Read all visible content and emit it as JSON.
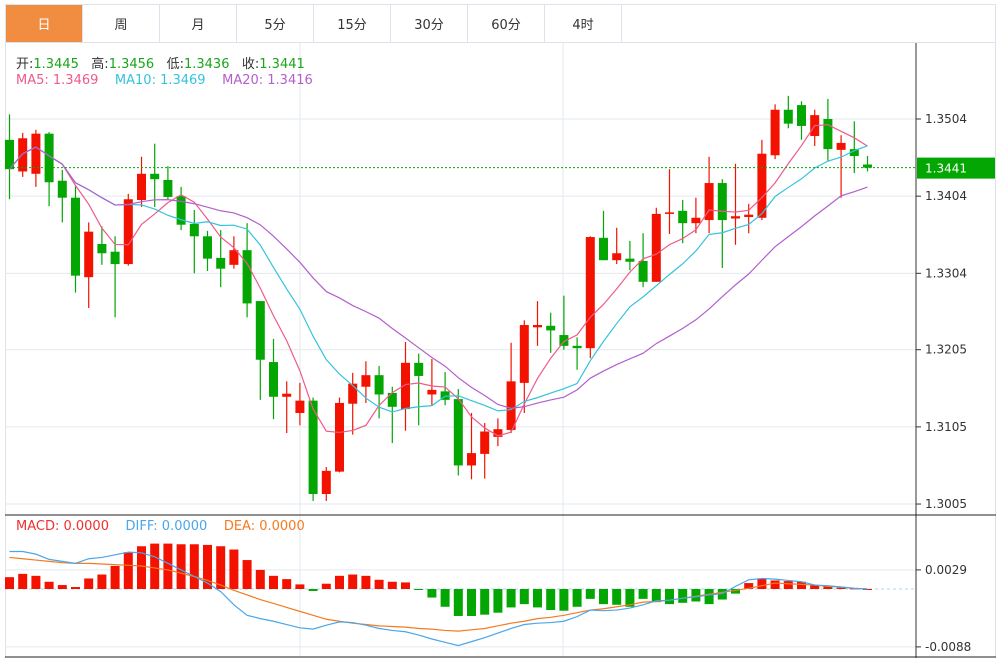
{
  "tabs": [
    {
      "label": "日",
      "active": true
    },
    {
      "label": "周"
    },
    {
      "label": "月"
    },
    {
      "label": "5分"
    },
    {
      "label": "15分"
    },
    {
      "label": "30分"
    },
    {
      "label": "60分"
    },
    {
      "label": "4时"
    }
  ],
  "ohlc_legend": {
    "open_label": "开:",
    "open": "1.3445",
    "high_label": "高:",
    "high": "1.3456",
    "low_label": "低:",
    "low": "1.3436",
    "close_label": "收:",
    "close": "1.3441"
  },
  "ma_legend": {
    "ma5": "MA5: 1.3469",
    "ma10": "MA10: 1.3469",
    "ma20": "MA20: 1.3416"
  },
  "macd_legend": {
    "macd": "MACD: 0.0000",
    "diff": "DIFF: 0.0000",
    "dea": "DEA: 0.0000"
  },
  "colors": {
    "up": "#f31200",
    "down": "#03a603",
    "ma5": "#ef5a8a",
    "ma10": "#35c3dc",
    "ma20": "#b35fcc",
    "diff": "#4aa6ea",
    "dea": "#f47b20",
    "last_price": "#03a603",
    "active_tab": "#f18d40"
  },
  "chart_data": [
    {
      "type": "candlestick",
      "price_ticks": [
        "1.3504",
        "1.3404",
        "1.3304",
        "1.3205",
        "1.3105",
        "1.3005"
      ],
      "ylim": [
        1.2985,
        1.354
      ],
      "last_price": "1.3441",
      "grid": true,
      "ohlc": [
        [
          1.3477,
          1.351,
          1.34,
          1.3439
        ],
        [
          1.3436,
          1.3486,
          1.3429,
          1.3479
        ],
        [
          1.3433,
          1.349,
          1.3416,
          1.3485
        ],
        [
          1.3485,
          1.3487,
          1.3391,
          1.3422
        ],
        [
          1.3424,
          1.3438,
          1.337,
          1.3402
        ],
        [
          1.3402,
          1.3417,
          1.3279,
          1.3301
        ],
        [
          1.3299,
          1.337,
          1.3259,
          1.3358
        ],
        [
          1.3342,
          1.3365,
          1.3315,
          1.333
        ],
        [
          1.3332,
          1.3352,
          1.3247,
          1.3316
        ],
        [
          1.3316,
          1.3407,
          1.3314,
          1.34
        ],
        [
          1.3399,
          1.3455,
          1.339,
          1.3433
        ],
        [
          1.3433,
          1.3472,
          1.339,
          1.3426
        ],
        [
          1.3425,
          1.3443,
          1.3399,
          1.3403
        ],
        [
          1.3404,
          1.3416,
          1.336,
          1.3367
        ],
        [
          1.3368,
          1.3386,
          1.3304,
          1.3352
        ],
        [
          1.3352,
          1.3359,
          1.3307,
          1.3323
        ],
        [
          1.3324,
          1.336,
          1.3286,
          1.331
        ],
        [
          1.3315,
          1.3352,
          1.331,
          1.3334
        ],
        [
          1.3334,
          1.3369,
          1.3247,
          1.3265
        ],
        [
          1.3268,
          1.3268,
          1.314,
          1.3192
        ],
        [
          1.3189,
          1.3219,
          1.3115,
          1.3144
        ],
        [
          1.3144,
          1.3164,
          1.3097,
          1.3148
        ],
        [
          1.3123,
          1.3162,
          1.3107,
          1.3139
        ],
        [
          1.3139,
          1.3143,
          1.3009,
          1.3018
        ],
        [
          1.3018,
          1.3053,
          1.3009,
          1.3048
        ],
        [
          1.3047,
          1.3143,
          1.3046,
          1.3136
        ],
        [
          1.3135,
          1.3175,
          1.3095,
          1.3161
        ],
        [
          1.3157,
          1.319,
          1.3136,
          1.3172
        ],
        [
          1.3172,
          1.3184,
          1.3116,
          1.3147
        ],
        [
          1.3149,
          1.3157,
          1.3084,
          1.3131
        ],
        [
          1.3128,
          1.3215,
          1.31,
          1.3188
        ],
        [
          1.3188,
          1.32,
          1.3107,
          1.3171
        ],
        [
          1.3147,
          1.3193,
          1.3133,
          1.3153
        ],
        [
          1.3151,
          1.3176,
          1.3133,
          1.314
        ],
        [
          1.3141,
          1.3154,
          1.3042,
          1.3055
        ],
        [
          1.3055,
          1.3123,
          1.3037,
          1.3071
        ],
        [
          1.307,
          1.311,
          1.3038,
          1.3099
        ],
        [
          1.3092,
          1.3116,
          1.308,
          1.3102
        ],
        [
          1.3101,
          1.3214,
          1.3097,
          1.3164
        ],
        [
          1.3162,
          1.3243,
          1.3123,
          1.3237
        ],
        [
          1.3234,
          1.3268,
          1.321,
          1.3237
        ],
        [
          1.3236,
          1.3253,
          1.3201,
          1.323
        ],
        [
          1.3224,
          1.3275,
          1.3205,
          1.321
        ],
        [
          1.321,
          1.3221,
          1.3179,
          1.3207
        ],
        [
          1.3207,
          1.3352,
          1.3194,
          1.3351
        ],
        [
          1.335,
          1.3385,
          1.3321,
          1.3321
        ],
        [
          1.3321,
          1.3363,
          1.3316,
          1.333
        ],
        [
          1.3323,
          1.3346,
          1.3308,
          1.3319
        ],
        [
          1.332,
          1.3356,
          1.3286,
          1.3293
        ],
        [
          1.3293,
          1.3389,
          1.3293,
          1.3381
        ],
        [
          1.3381,
          1.3439,
          1.3355,
          1.3383
        ],
        [
          1.3385,
          1.3399,
          1.3343,
          1.3369
        ],
        [
          1.3369,
          1.3402,
          1.3356,
          1.3376
        ],
        [
          1.3373,
          1.3455,
          1.3356,
          1.3421
        ],
        [
          1.3421,
          1.3426,
          1.3311,
          1.3373
        ],
        [
          1.3375,
          1.3446,
          1.3341,
          1.3378
        ],
        [
          1.3377,
          1.3394,
          1.3356,
          1.338
        ],
        [
          1.3376,
          1.3477,
          1.3373,
          1.3459
        ],
        [
          1.3457,
          1.3523,
          1.3452,
          1.3516
        ],
        [
          1.3516,
          1.3534,
          1.3492,
          1.3498
        ],
        [
          1.3522,
          1.3527,
          1.3477,
          1.3495
        ],
        [
          1.3482,
          1.3516,
          1.3469,
          1.3509
        ],
        [
          1.3504,
          1.353,
          1.345,
          1.3465
        ],
        [
          1.3464,
          1.3483,
          1.3402,
          1.3473
        ],
        [
          1.3465,
          1.3501,
          1.3434,
          1.3456
        ],
        [
          1.3445,
          1.3456,
          1.3436,
          1.3441
        ]
      ],
      "series": [
        {
          "name": "MA5",
          "period": 5
        },
        {
          "name": "MA10",
          "period": 10
        },
        {
          "name": "MA20",
          "period": 20
        }
      ]
    },
    {
      "type": "bar+line",
      "ticks": [
        "0.0029",
        "-0.0088"
      ],
      "ylim": [
        -0.0105,
        0.0105
      ],
      "macd": [
        0.0018,
        0.0023,
        0.002,
        0.0011,
        0.0006,
        0.0003,
        0.0016,
        0.0022,
        0.0035,
        0.0056,
        0.0065,
        0.0069,
        0.0069,
        0.0068,
        0.0068,
        0.0067,
        0.0065,
        0.006,
        0.0044,
        0.0029,
        0.002,
        0.0015,
        0.0007,
        -0.0003,
        0.0008,
        0.002,
        0.0022,
        0.002,
        0.0014,
        0.0011,
        0.001,
        -0.0001,
        -0.0013,
        -0.0027,
        -0.0041,
        -0.0041,
        -0.0039,
        -0.0036,
        -0.0028,
        -0.0023,
        -0.0028,
        -0.0032,
        -0.0033,
        -0.0027,
        -0.0015,
        -0.0023,
        -0.0024,
        -0.0027,
        -0.0015,
        -0.002,
        -0.0023,
        -0.0021,
        -0.0019,
        -0.0023,
        -0.0016,
        -0.0007,
        0.0009,
        0.0016,
        0.0013,
        0.0012,
        0.0011,
        0.0006,
        0.0005,
        0.0002,
        0.0001,
        0.0
      ],
      "diff": [
        0.0057,
        0.0057,
        0.0053,
        0.0045,
        0.0042,
        0.0039,
        0.0046,
        0.0048,
        0.0052,
        0.0056,
        0.0055,
        0.0049,
        0.0039,
        0.0029,
        0.0019,
        0.0009,
        -0.0004,
        -0.0024,
        -0.004,
        -0.0045,
        -0.0049,
        -0.0054,
        -0.0059,
        -0.0061,
        -0.0055,
        -0.005,
        -0.0051,
        -0.0055,
        -0.006,
        -0.0063,
        -0.0065,
        -0.007,
        -0.0076,
        -0.0081,
        -0.0086,
        -0.008,
        -0.0074,
        -0.0067,
        -0.006,
        -0.0054,
        -0.0052,
        -0.0051,
        -0.0049,
        -0.0042,
        -0.0032,
        -0.0033,
        -0.0032,
        -0.0029,
        -0.0024,
        -0.0018,
        -0.0017,
        -0.0014,
        -0.0012,
        -0.0009,
        -0.0007,
        0.0004,
        0.0014,
        0.0016,
        0.0015,
        0.0013,
        0.0011,
        0.0006,
        0.0005,
        0.0003,
        0.0001,
        0.0
      ],
      "dea": [
        0.0048,
        0.0046,
        0.0044,
        0.0042,
        0.004,
        0.0039,
        0.0039,
        0.0038,
        0.0037,
        0.0036,
        0.0035,
        0.0032,
        0.0029,
        0.0024,
        0.0019,
        0.0013,
        0.0006,
        -0.0002,
        -0.0009,
        -0.0016,
        -0.0022,
        -0.0028,
        -0.0034,
        -0.004,
        -0.0046,
        -0.0049,
        -0.0052,
        -0.0054,
        -0.0056,
        -0.0057,
        -0.0058,
        -0.006,
        -0.0061,
        -0.0063,
        -0.0064,
        -0.0062,
        -0.006,
        -0.0056,
        -0.0052,
        -0.0049,
        -0.0045,
        -0.0043,
        -0.004,
        -0.0036,
        -0.0032,
        -0.003,
        -0.0027,
        -0.0024,
        -0.002,
        -0.0019,
        -0.0017,
        -0.0014,
        -0.0011,
        -0.0008,
        -0.0005,
        -0.0002,
        0.0001,
        0.0005,
        0.0009,
        0.0008,
        0.0007,
        0.0006,
        0.0004,
        0.0003,
        0.0001,
        0.0
      ]
    }
  ]
}
